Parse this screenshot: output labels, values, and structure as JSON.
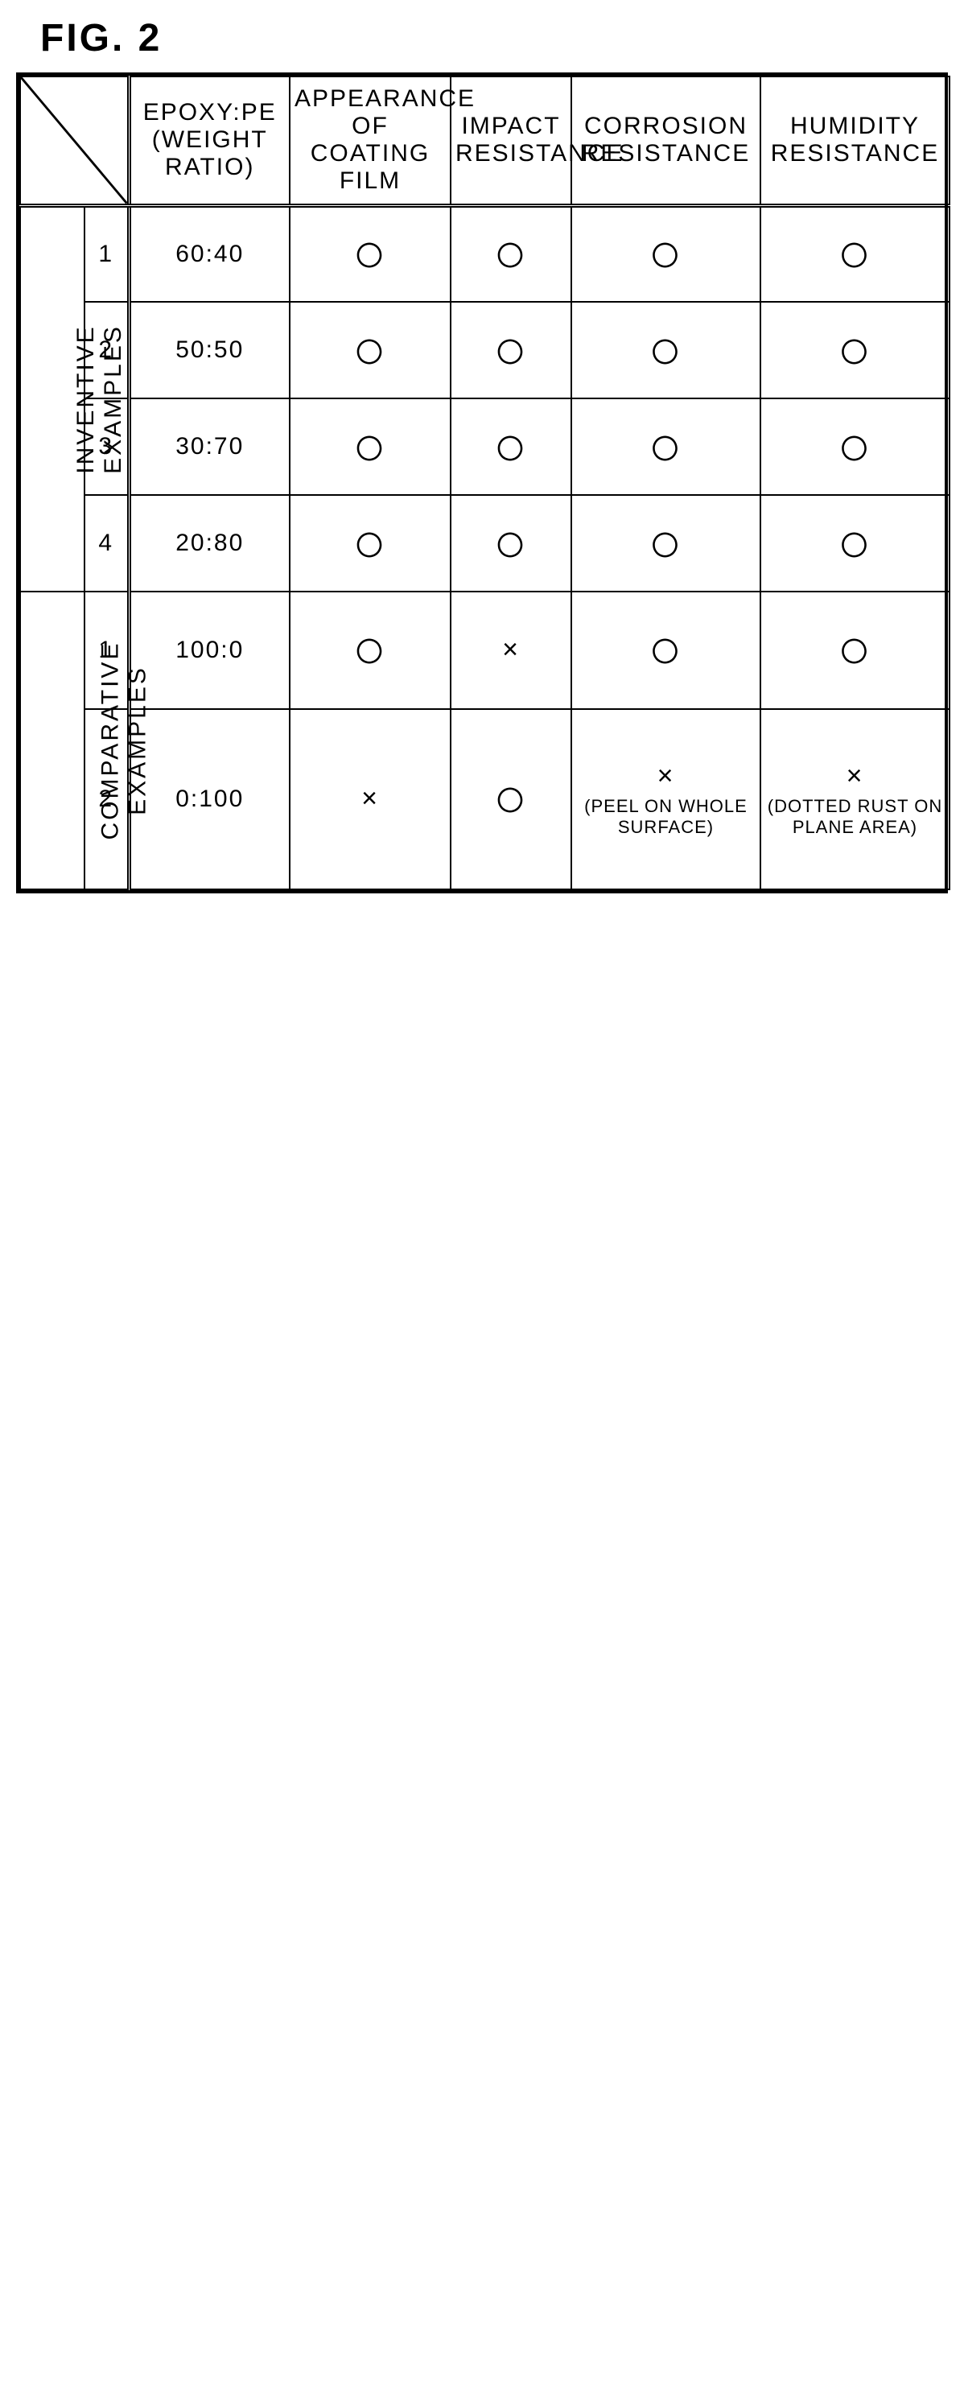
{
  "figureLabel": "FIG. 2",
  "headers": {
    "ratio": "EPOXY:PE\n(WEIGHT RATIO)",
    "appearance": "APPEARANCE OF\nCOATING FILM",
    "impact": "IMPACT\nRESISTANCE",
    "corrosion": "CORROSION\nRESISTANCE",
    "humidity": "HUMIDITY\nRESISTANCE"
  },
  "groups": {
    "inventive": "INVENTIVE\nEXAMPLES",
    "comparative": "COMPARATIVE\nEXAMPLES"
  },
  "marks": {
    "good": "〇",
    "bad": "×"
  },
  "inventiveRows": [
    {
      "n": "1",
      "ratio": "60:40",
      "app": "good",
      "imp": "good",
      "corr": "good",
      "hum": "good"
    },
    {
      "n": "2",
      "ratio": "50:50",
      "app": "good",
      "imp": "good",
      "corr": "good",
      "hum": "good"
    },
    {
      "n": "3",
      "ratio": "30:70",
      "app": "good",
      "imp": "good",
      "corr": "good",
      "hum": "good"
    },
    {
      "n": "4",
      "ratio": "20:80",
      "app": "good",
      "imp": "good",
      "corr": "good",
      "hum": "good"
    }
  ],
  "comparativeRows": [
    {
      "n": "1",
      "ratio": "100:0",
      "app": "good",
      "imp": "bad",
      "corr": "good",
      "hum": "good",
      "corrNote": "",
      "humNote": ""
    },
    {
      "n": "2",
      "ratio": "0:100",
      "app": "bad",
      "imp": "good",
      "corr": "bad",
      "hum": "bad",
      "corrNote": "(PEEL ON WHOLE SURFACE)",
      "humNote": "(DOTTED RUST ON PLANE AREA)"
    }
  ],
  "colors": {
    "border": "#000000",
    "bg": "#ffffff",
    "text": "#000000"
  }
}
